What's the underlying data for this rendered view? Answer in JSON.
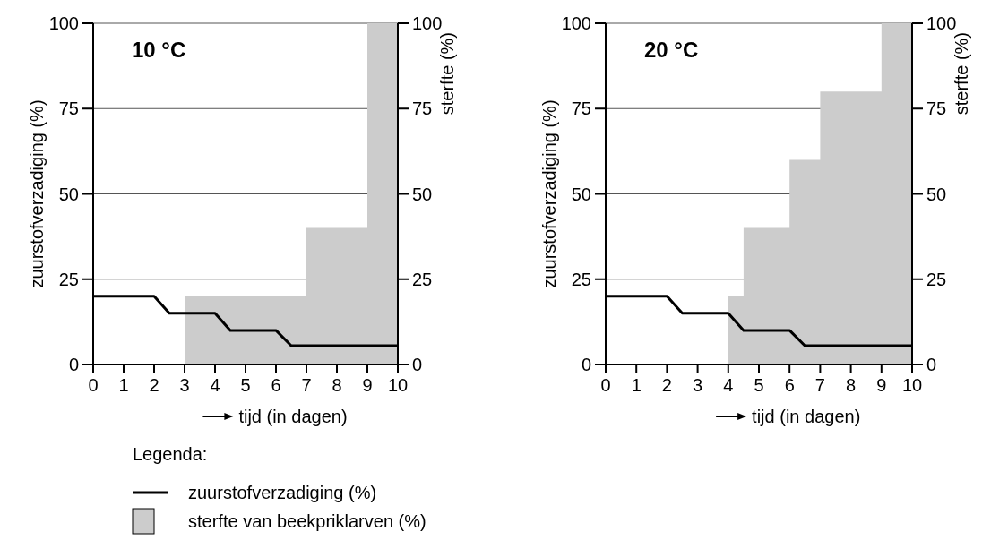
{
  "chart_data": [
    {
      "type": "line",
      "title": "10 °C",
      "xlabel": "tijd (in dagen)",
      "ylabel": "zuurstofverzadiging (%)",
      "y2label": "sterfte (%)",
      "legend_title": "Legenda:",
      "legend": "bottom",
      "grid": "y",
      "xlim": [
        0,
        10
      ],
      "xticks": [
        0,
        1,
        2,
        3,
        4,
        5,
        6,
        7,
        8,
        9,
        10
      ],
      "ylim": [
        0,
        100
      ],
      "yticks": [
        0,
        25,
        50,
        75,
        100
      ],
      "y2lim": [
        0,
        100
      ],
      "y2ticks": [
        0,
        25,
        50,
        75,
        100
      ],
      "series": [
        {
          "name": "sterfte van beekpriklarven (%)",
          "type": "area",
          "axis": "y2",
          "color": "#cccccc",
          "x": [
            0,
            3,
            3,
            7,
            7,
            9,
            9,
            10
          ],
          "values": [
            0,
            0,
            20,
            20,
            40,
            40,
            100,
            100
          ]
        },
        {
          "name": "zuurstofverzadiging (%)",
          "color": "#000000",
          "x": [
            0,
            2,
            2.5,
            4,
            4.5,
            6,
            6.5,
            10
          ],
          "values": [
            20,
            20,
            15,
            15,
            10,
            10,
            5.5,
            5.5
          ]
        }
      ]
    },
    {
      "type": "line",
      "title": "20 °C",
      "xlabel": "tijd (in dagen)",
      "ylabel": "zuurstofverzadiging (%)",
      "y2label": "sterfte (%)",
      "grid": "y",
      "xlim": [
        0,
        10
      ],
      "xticks": [
        0,
        1,
        2,
        3,
        4,
        5,
        6,
        7,
        8,
        9,
        10
      ],
      "ylim": [
        0,
        100
      ],
      "yticks": [
        0,
        25,
        50,
        75,
        100
      ],
      "y2lim": [
        0,
        100
      ],
      "y2ticks": [
        0,
        25,
        50,
        75,
        100
      ],
      "series": [
        {
          "type": "area",
          "axis": "y2",
          "color": "#cccccc",
          "x": [
            0,
            4,
            4,
            4.5,
            4.5,
            6,
            6,
            7,
            7,
            9,
            9,
            10
          ],
          "values": [
            0,
            0,
            20,
            20,
            40,
            40,
            60,
            60,
            80,
            80,
            100,
            100
          ]
        },
        {
          "color": "#000000",
          "x": [
            0,
            2,
            2.5,
            4,
            4.5,
            6,
            6.5,
            10
          ],
          "values": [
            20,
            20,
            15,
            15,
            10,
            10,
            5.5,
            5.5
          ]
        }
      ]
    }
  ]
}
